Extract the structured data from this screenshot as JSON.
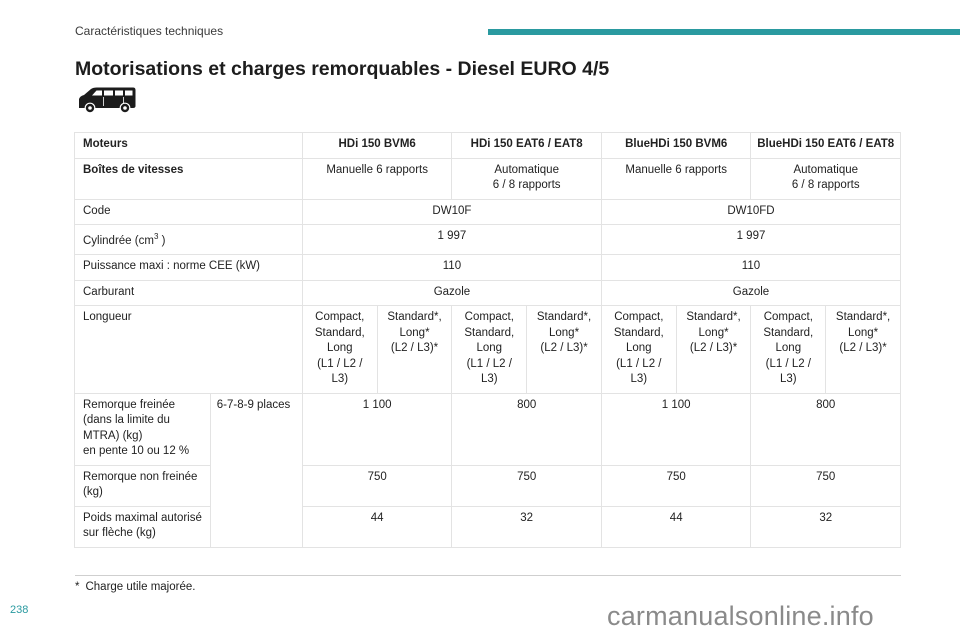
{
  "header": {
    "section_title": "Caractéristiques techniques",
    "accent_color": "#2a9aa0"
  },
  "title": "Motorisations et charges remorquables - Diesel EURO 4/5",
  "vehicle_icon": "van-icon",
  "table": {
    "engines_label": "Moteurs",
    "engines": [
      "HDi 150 BVM6",
      "HDi 150 EAT6 / EAT8",
      "BlueHDi 150 BVM6",
      "BlueHDi 150 EAT6 / EAT8"
    ],
    "gearbox_label": "Boîtes de vitesses",
    "gearboxes": [
      "Manuelle 6 rapports",
      "Automatique\n6 / 8 rapports",
      "Manuelle 6 rapports",
      "Automatique\n6 / 8 rapports"
    ],
    "code_label": "Code",
    "codes": [
      "DW10F",
      "DW10FD"
    ],
    "displacement_label": "Cylindrée (cm",
    "displacement_sup": "3",
    "displacement_label_end": " )",
    "displacements": [
      "1 997",
      "1 997"
    ],
    "power_label": "Puissance maxi : norme CEE (kW)",
    "powers": [
      "110",
      "110"
    ],
    "fuel_label": "Carburant",
    "fuels": [
      "Gazole",
      "Gazole"
    ],
    "length_label": "Longueur",
    "lengths": [
      "Compact,\nStandard,\nLong\n(L1 / L2 /\nL3)",
      "Standard*,\nLong*\n(L2 / L3)*",
      "Compact,\nStandard,\nLong\n(L1 / L2 /\nL3)",
      "Standard*,\nLong*\n(L2 / L3)*",
      "Compact,\nStandard,\nLong\n(L1 / L2 /\nL3)",
      "Standard*,\nLong*\n(L2 / L3)*",
      "Compact,\nStandard,\nLong\n(L1 / L2 /\nL3)",
      "Standard*,\nLong*\n(L2 / L3)*"
    ],
    "braked_label": "Remorque freinée\n(dans la limite du\nMTRA) (kg)\nen pente 10 ou 12 %",
    "seats_label": "6-7-8-9 places",
    "braked": [
      "1 100",
      "800",
      "1 100",
      "800"
    ],
    "unbraked_label": "Remorque non freinée\n(kg)",
    "unbraked": [
      "750",
      "750",
      "750",
      "750"
    ],
    "towbar_label": "Poids maximal autorisé\nsur flèche (kg)",
    "towbar": [
      "44",
      "32",
      "44",
      "32"
    ]
  },
  "footnote": {
    "mark": "*",
    "text": "Charge utile majorée."
  },
  "page_number": "238",
  "watermark": "carmanualsonline.info"
}
